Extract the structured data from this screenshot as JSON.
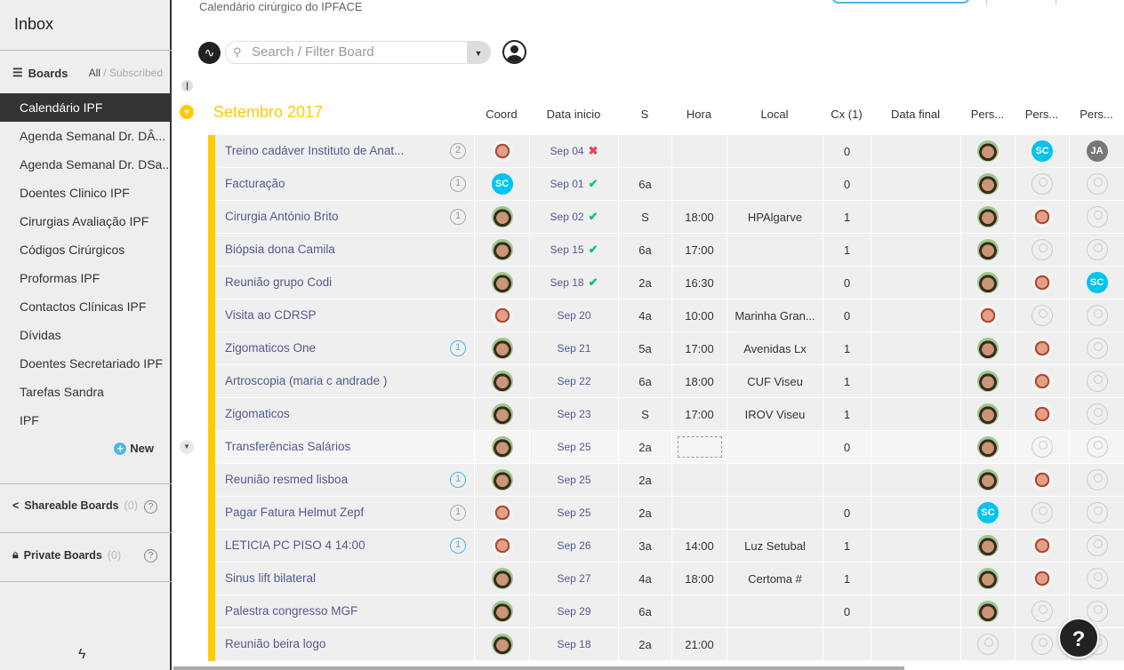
{
  "sidebar": {
    "inbox": "Inbox",
    "boards_label": "Boards",
    "filter_all": "All",
    "filter_sep": " / ",
    "filter_subscribed": "Subscribed",
    "items": [
      {
        "label": "Calendário IPF",
        "active": true
      },
      {
        "label": "Agenda Semanal Dr. DÂ..."
      },
      {
        "label": "Agenda Semanal Dr. DSa..."
      },
      {
        "label": "Doentes Clinico IPF"
      },
      {
        "label": "Cirurgias Avaliação IPF"
      },
      {
        "label": "Códigos Cirúrgicos"
      },
      {
        "label": "Proformas IPF"
      },
      {
        "label": "Contactos Clínicas IPF"
      },
      {
        "label": "Dívidas"
      },
      {
        "label": "Doentes Secretariado IPF"
      },
      {
        "label": "Tarefas Sandra"
      },
      {
        "label": "IPF"
      }
    ],
    "new_label": "New",
    "shareable": {
      "label": "Shareable Boards",
      "count": "(0)"
    },
    "private": {
      "label": "Private Boards",
      "count": "(0)"
    }
  },
  "header": {
    "subtitle": "Calendário cirúrgico do IPFACE",
    "search_placeholder": "Search / Filter Board"
  },
  "group": {
    "title": "Setembro 2017",
    "color": "#ffcb00",
    "columns": [
      "Coord",
      "Data inicio",
      "S",
      "Hora",
      "Local",
      "Cx (1)",
      "Data final",
      "Pers...",
      "Pers...",
      "Pers..."
    ],
    "rows": [
      {
        "name": "Treino cadáver Instituto de Anat...",
        "updates": "2",
        "upd_color": "gray",
        "coord": "r",
        "date": "Sep 04",
        "status": "x",
        "s": "",
        "hora": "",
        "local": "",
        "cx": "0",
        "pers": [
          "g",
          "SC",
          "JA"
        ]
      },
      {
        "name": "Facturação",
        "updates": "1",
        "upd_color": "gray",
        "coord": "SC",
        "date": "Sep 01",
        "status": "check",
        "s": "6a",
        "hora": "",
        "local": "",
        "cx": "0",
        "pers": [
          "g",
          "e",
          "e"
        ]
      },
      {
        "name": "Cirurgia António Brito",
        "updates": "1",
        "upd_color": "gray",
        "coord": "g",
        "date": "Sep 02",
        "status": "check",
        "s": "S",
        "hora": "18:00",
        "local": "HPAlgarve",
        "cx": "1",
        "pers": [
          "g",
          "r",
          "e"
        ]
      },
      {
        "name": "Biópsia dona Camila",
        "updates": "",
        "coord": "g",
        "date": "Sep 15",
        "status": "check",
        "s": "6a",
        "hora": "17:00",
        "local": "",
        "cx": "1",
        "pers": [
          "g",
          "e",
          "e"
        ]
      },
      {
        "name": "Reunião grupo Codi",
        "updates": "",
        "coord": "g",
        "date": "Sep 18",
        "status": "check",
        "s": "2a",
        "hora": "16:30",
        "local": "",
        "cx": "0",
        "pers": [
          "g",
          "r",
          "SC"
        ]
      },
      {
        "name": "Visita ao CDRSP",
        "updates": "",
        "coord": "r",
        "date": "Sep 20",
        "status": "",
        "s": "4a",
        "hora": "10:00",
        "local": "Marinha Gran...",
        "cx": "0",
        "pers": [
          "r",
          "e",
          "e"
        ]
      },
      {
        "name": "Zigomaticos One",
        "updates": "1",
        "upd_color": "blue",
        "coord": "g",
        "date": "Sep 21",
        "status": "",
        "s": "5a",
        "hora": "17:00",
        "local": "Avenidas Lx",
        "cx": "1",
        "pers": [
          "g",
          "r",
          "e"
        ]
      },
      {
        "name": "Artroscopia (maria c andrade )",
        "updates": "",
        "coord": "g",
        "date": "Sep 22",
        "status": "",
        "s": "6a",
        "hora": "18:00",
        "local": "CUF Viseu",
        "cx": "1",
        "pers": [
          "g",
          "r",
          "e"
        ]
      },
      {
        "name": "Zigomaticos",
        "updates": "",
        "coord": "g",
        "date": "Sep 23",
        "status": "",
        "s": "S",
        "hora": "17:00",
        "local": "IROV Viseu",
        "cx": "1",
        "pers": [
          "g",
          "r",
          "e"
        ]
      },
      {
        "name": "Transferências Salários",
        "updates": "",
        "coord": "g",
        "date": "Sep 25",
        "status": "",
        "s": "2a",
        "hora": "",
        "hora_editing": true,
        "local": "",
        "cx": "0",
        "pers": [
          "g",
          "e",
          "e"
        ]
      },
      {
        "name": "Reunião resmed lisboa",
        "updates": "1",
        "upd_color": "blue",
        "coord": "g",
        "date": "Sep 25",
        "status": "",
        "s": "2a",
        "hora": "",
        "local": "",
        "cx": "",
        "pers": [
          "g",
          "r",
          "e"
        ]
      },
      {
        "name": "Pagar Fatura Helmut Zepf",
        "updates": "1",
        "upd_color": "gray",
        "coord": "r",
        "date": "Sep 25",
        "status": "",
        "s": "2a",
        "hora": "",
        "local": "",
        "cx": "0",
        "pers": [
          "SC",
          "e",
          "e"
        ]
      },
      {
        "name": "LETICIA PC PISO 4 14:00",
        "updates": "1",
        "upd_color": "blue",
        "coord": "r",
        "date": "Sep 26",
        "status": "",
        "s": "3a",
        "hora": "14:00",
        "local": "Luz Setubal",
        "cx": "1",
        "pers": [
          "g",
          "r",
          "e"
        ]
      },
      {
        "name": "Sinus lift bilateral",
        "updates": "",
        "coord": "g",
        "date": "Sep 27",
        "status": "",
        "s": "4a",
        "hora": "18:00",
        "local": "Certoma #",
        "cx": "1",
        "pers": [
          "g",
          "r",
          "e"
        ]
      },
      {
        "name": "Palestra congresso MGF",
        "updates": "",
        "coord": "g",
        "date": "Sep 29",
        "status": "",
        "s": "6a",
        "hora": "",
        "local": "",
        "cx": "0",
        "pers": [
          "g",
          "e",
          "e"
        ]
      },
      {
        "name": "Reunião beira logo",
        "updates": "",
        "coord": "g",
        "date": "Sep 18",
        "status": "",
        "s": "2a",
        "hora": "21:00",
        "local": "",
        "cx": "",
        "pers": [
          "e",
          "e",
          "e"
        ]
      }
    ]
  },
  "help_label": "?"
}
